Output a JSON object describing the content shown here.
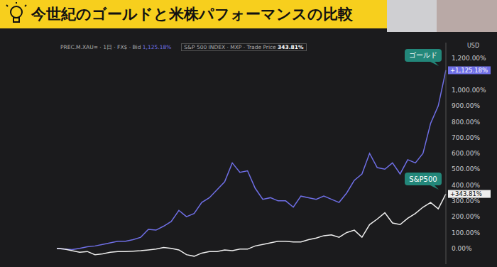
{
  "title": "今世紀のゴールドと米株パフォーマンスの比較",
  "chart_data": {
    "type": "line",
    "currency": "USD",
    "categories": [
      null,
      null,
      null,
      null,
      null,
      null,
      null,
      null,
      null,
      null,
      null,
      null,
      null,
      null,
      null,
      null,
      null,
      null,
      null,
      null,
      null,
      null,
      null,
      null,
      null,
      null,
      null,
      null,
      null,
      null,
      null,
      null,
      null,
      null,
      null,
      null,
      null,
      null,
      null,
      null,
      null,
      null,
      null,
      null,
      null,
      null,
      null,
      null,
      null,
      null,
      null,
      null
    ],
    "series": [
      {
        "name": "ゴールド",
        "header": "PREC.M.XAU= · 1日 · FX$ · Bid",
        "header_value": "1,125.18%",
        "last_label": "+1,125.18%",
        "color": "#6f6fe6",
        "values": [
          0,
          -5,
          -8,
          0,
          10,
          15,
          25,
          35,
          45,
          45,
          55,
          70,
          120,
          115,
          140,
          170,
          240,
          200,
          220,
          290,
          320,
          370,
          420,
          540,
          480,
          490,
          380,
          310,
          320,
          300,
          300,
          260,
          330,
          320,
          310,
          330,
          310,
          290,
          350,
          430,
          470,
          600,
          510,
          500,
          540,
          470,
          560,
          540,
          600,
          790,
          900,
          1125.18
        ]
      },
      {
        "name": "S&P500",
        "header": "S&P 500 INDEX · MXP · Trade Price",
        "header_value": "343.81%",
        "last_label": "+343.81%",
        "color": "#eeeeee",
        "values": [
          0,
          -5,
          -15,
          -25,
          -20,
          -40,
          -35,
          -25,
          -20,
          -20,
          -18,
          -15,
          -10,
          -5,
          5,
          0,
          -10,
          -40,
          -50,
          -30,
          -20,
          -20,
          -10,
          -15,
          -5,
          -5,
          15,
          25,
          35,
          45,
          45,
          40,
          40,
          55,
          65,
          80,
          85,
          70,
          100,
          115,
          70,
          150,
          185,
          225,
          160,
          150,
          190,
          220,
          260,
          290,
          250,
          343.81
        ]
      }
    ],
    "ylim": [
      -100,
      1300
    ],
    "yticks": [
      {
        "value": 0,
        "label": "0.00%"
      },
      {
        "value": 100,
        "label": "100.00%"
      },
      {
        "value": 200,
        "label": "200.00%"
      },
      {
        "value": 300,
        "label": "300.00%"
      },
      {
        "value": 400,
        "label": "400.00%"
      },
      {
        "value": 500,
        "label": "500.00%"
      },
      {
        "value": 600,
        "label": "600.00%"
      },
      {
        "value": 700,
        "label": "700.00%"
      },
      {
        "value": 800,
        "label": "800.00%"
      },
      {
        "value": 900,
        "label": "900.00%"
      },
      {
        "value": 1000,
        "label": "1,000.00%"
      },
      {
        "value": 1200,
        "label": "1,200.00%"
      }
    ],
    "grid": false,
    "tick_labels": "y"
  }
}
